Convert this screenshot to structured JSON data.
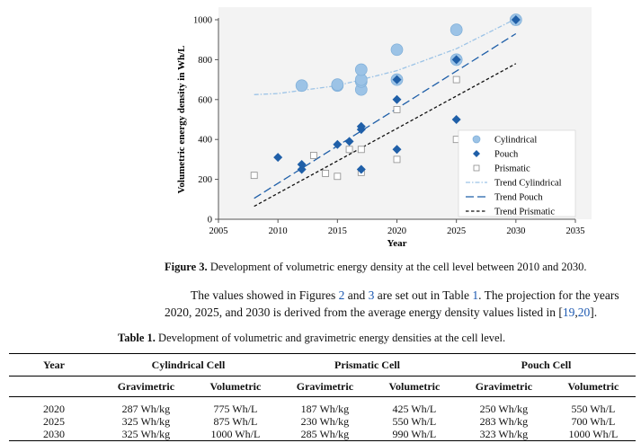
{
  "chart_data": {
    "type": "scatter",
    "xlabel": "Year",
    "ylabel": "Volumetric energy density in Wh/L",
    "xlim": [
      2005,
      2035
    ],
    "ylim": [
      0,
      1000
    ],
    "xticks": [
      "2005",
      "2010",
      "2015",
      "2020",
      "2025",
      "2030",
      "2035"
    ],
    "yticks": [
      "0",
      "200",
      "400",
      "600",
      "800",
      "1000"
    ],
    "grid": false,
    "legend_position": "bottom-right",
    "series": [
      {
        "name": "Cylindrical",
        "marker": "circle",
        "color": "#9cc3e6",
        "points": [
          [
            2012,
            670
          ],
          [
            2015,
            670
          ],
          [
            2015,
            675
          ],
          [
            2017,
            650
          ],
          [
            2017,
            690
          ],
          [
            2017,
            700
          ],
          [
            2017,
            750
          ],
          [
            2020,
            700
          ],
          [
            2020,
            850
          ],
          [
            2025,
            800
          ],
          [
            2025,
            950
          ],
          [
            2030,
            1000
          ]
        ]
      },
      {
        "name": "Pouch",
        "marker": "diamond",
        "color": "#1f5fa8",
        "points": [
          [
            2010,
            310
          ],
          [
            2012,
            250
          ],
          [
            2012,
            275
          ],
          [
            2015,
            375
          ],
          [
            2016,
            390
          ],
          [
            2017,
            250
          ],
          [
            2017,
            450
          ],
          [
            2017,
            465
          ],
          [
            2020,
            350
          ],
          [
            2020,
            600
          ],
          [
            2020,
            700
          ],
          [
            2025,
            500
          ],
          [
            2025,
            800
          ],
          [
            2030,
            1000
          ]
        ]
      },
      {
        "name": "Prismatic",
        "marker": "square-open",
        "color": "#8c8c8c",
        "points": [
          [
            2008,
            220
          ],
          [
            2013,
            320
          ],
          [
            2014,
            230
          ],
          [
            2015,
            215
          ],
          [
            2016,
            350
          ],
          [
            2017,
            350
          ],
          [
            2017,
            235
          ],
          [
            2020,
            300
          ],
          [
            2020,
            550
          ],
          [
            2025,
            400
          ],
          [
            2025,
            700
          ],
          [
            2030,
            990
          ]
        ]
      }
    ],
    "trends": [
      {
        "name": "Trend Cylindrical",
        "style": "dash-dot",
        "color": "#9cc3e6",
        "x": [
          2008,
          2010,
          2015,
          2020,
          2025,
          2030
        ],
        "y": [
          625,
          630,
          670,
          745,
          855,
          1005
        ]
      },
      {
        "name": "Trend Pouch",
        "style": "long-dash",
        "color": "#1f5fa8",
        "x": [
          2008,
          2030
        ],
        "y": [
          105,
          930
        ]
      },
      {
        "name": "Trend Prismatic",
        "style": "short-dash",
        "color": "#111111",
        "x": [
          2008,
          2030
        ],
        "y": [
          65,
          780
        ]
      }
    ]
  },
  "figure_caption": {
    "label": "Figure 3.",
    "text": "Development of volumetric energy density at the cell level between 2010 and 2030."
  },
  "paragraph": {
    "t1": "The values showed in Figures ",
    "ref1": "2",
    "t2": " and ",
    "ref2": "3",
    "t3": " are set out in Table ",
    "ref3": "1",
    "t4": ". The projection for the years 2020, 2025, and 2030 is derived from the average energy density values listed in [",
    "ref4": "19",
    "t5": ",",
    "ref5": "20",
    "t6": "]."
  },
  "table_caption": {
    "label": "Table 1.",
    "text": "Development of volumetric and gravimetric energy densities at the cell level."
  },
  "table": {
    "year_header": "Year",
    "groups": [
      "Cylindrical Cell",
      "Prismatic Cell",
      "Pouch Cell"
    ],
    "subheaders": [
      "Gravimetric",
      "Volumetric",
      "Gravimetric",
      "Volumetric",
      "Gravimetric",
      "Volumetric"
    ],
    "rows": [
      {
        "year": "2020",
        "cells": [
          "287 Wh/kg",
          "775 Wh/L",
          "187 Wh/kg",
          "425 Wh/L",
          "250 Wh/kg",
          "550 Wh/L"
        ]
      },
      {
        "year": "2025",
        "cells": [
          "325 Wh/kg",
          "875 Wh/L",
          "230 Wh/kg",
          "550 Wh/L",
          "283 Wh/kg",
          "700 Wh/L"
        ]
      },
      {
        "year": "2030",
        "cells": [
          "325 Wh/kg",
          "1000 Wh/L",
          "285 Wh/kg",
          "990 Wh/L",
          "323 Wh/kg",
          "1000 Wh/L"
        ]
      }
    ]
  }
}
